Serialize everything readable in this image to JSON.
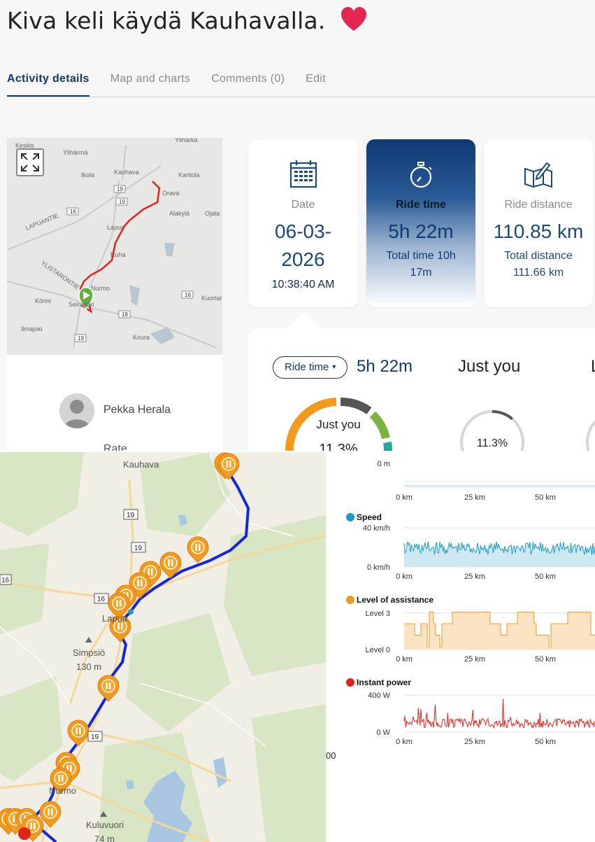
{
  "header": {
    "title": "Kiva keli käydä Kauhavalla."
  },
  "tabs": [
    {
      "label": "Activity details",
      "active": true
    },
    {
      "label": "Map and charts",
      "active": false
    },
    {
      "label": "Comments (0)",
      "active": false
    },
    {
      "label": "Edit",
      "active": false
    }
  ],
  "mini_map": {
    "places": [
      "Keskis",
      "Ylihärmä",
      "Ylihärkä",
      "Kauhava",
      "Kantola",
      "Ikola",
      "Orava",
      "Alakylä",
      "Ojala",
      "Lapua",
      "LAPUANTIE",
      "Ruha",
      "YLISTARONTIE",
      "Nurmo",
      "Kuortan",
      "Könni",
      "Seinäjoki",
      "Ilmajoki",
      "Koura"
    ],
    "roads": [
      "19",
      "19",
      "16",
      "16",
      "18",
      "19"
    ]
  },
  "profile": {
    "name": "Pekka Herala",
    "rate_label": "Rate"
  },
  "stats": {
    "date": {
      "label": "Date",
      "value_line1": "06-03-",
      "value_line2": "2026",
      "sub": "10:38:40 AM"
    },
    "ride_time": {
      "label": "Ride time",
      "value": "5h 22m",
      "sub_line1": "Total time 10h",
      "sub_line2": "17m"
    },
    "ride_distance": {
      "label": "Ride distance",
      "value": "110.85 km",
      "sub_line1": "Total distance",
      "sub_line2": "111.66 km"
    }
  },
  "panel": {
    "dropdown_label": "Ride time",
    "value": "5h 22m",
    "compare_title": "Just you",
    "cut_title": "L",
    "donut_label": "Just you",
    "donut_value": "11.3%",
    "circle_value": "11.3%",
    "percent": 11.3
  },
  "big_map": {
    "places": [
      "Kauhava",
      "Lapua",
      "Simpsiö",
      "130 m",
      "Nurmo",
      "Kuluvuori",
      "74 m"
    ],
    "roads": [
      "19",
      "19",
      "16",
      "16",
      "19"
    ]
  },
  "charts": {
    "stray_text": "00",
    "panels": [
      {
        "title": "",
        "color": "#bfe3ec",
        "ylabels": [
          "0 m"
        ],
        "xlabels": [
          "0 km",
          "25 km",
          "50 km"
        ]
      },
      {
        "title": "Speed",
        "color": "#1a9bc7",
        "ylabels": [
          "40 km/h",
          "0 km/h"
        ],
        "xlabels": [
          "0 km",
          "25 km",
          "50 km"
        ]
      },
      {
        "title": "Level of assistance",
        "color": "#f29a1e",
        "ylabels": [
          "Level 3",
          "Level 0"
        ],
        "xlabels": [
          "0 km",
          "25 km",
          "50 km"
        ]
      },
      {
        "title": "Instant power",
        "color": "#e2231a",
        "ylabels": [
          "400 W",
          "0 W"
        ],
        "xlabels": [
          "0 km",
          "25 km",
          "50 km"
        ]
      }
    ]
  }
}
